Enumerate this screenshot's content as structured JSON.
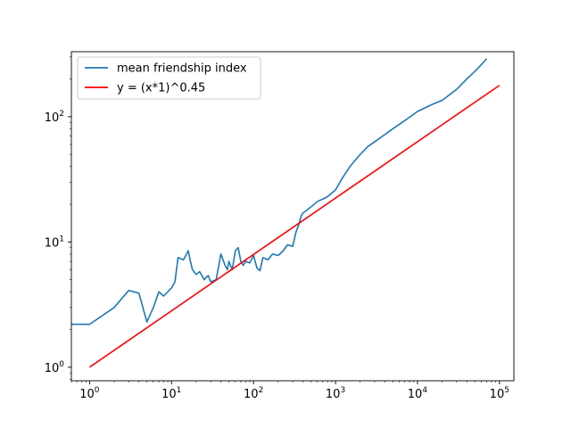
{
  "chart_data": {
    "type": "line",
    "title": "",
    "xlabel": "",
    "ylabel": "",
    "xscale": "log",
    "yscale": "log",
    "xlim": [
      0.6,
      150000
    ],
    "ylim": [
      0.78,
      330
    ],
    "grid": false,
    "legend_position": "top-left",
    "x_ticks": [
      {
        "value": 1,
        "base": "10",
        "exp": "0"
      },
      {
        "value": 10,
        "base": "10",
        "exp": "1"
      },
      {
        "value": 100,
        "base": "10",
        "exp": "2"
      },
      {
        "value": 1000,
        "base": "10",
        "exp": "3"
      },
      {
        "value": 10000,
        "base": "10",
        "exp": "4"
      },
      {
        "value": 100000,
        "base": "10",
        "exp": "5"
      }
    ],
    "y_ticks": [
      {
        "value": 1,
        "base": "10",
        "exp": "0"
      },
      {
        "value": 10,
        "base": "10",
        "exp": "1"
      },
      {
        "value": 100,
        "base": "10",
        "exp": "2"
      }
    ],
    "series": [
      {
        "name": "mean friendship index",
        "color": "#1f77b4",
        "x": [
          0.6,
          1,
          2,
          3,
          4,
          5,
          6,
          7,
          8,
          9,
          10,
          11,
          12,
          14,
          16,
          17,
          18,
          20,
          22,
          25,
          28,
          30,
          35,
          40,
          45,
          48,
          50,
          55,
          60,
          65,
          70,
          75,
          80,
          90,
          100,
          110,
          120,
          130,
          150,
          170,
          200,
          230,
          260,
          300,
          330,
          360,
          380,
          400,
          450,
          500,
          600,
          700,
          800,
          1000,
          1200,
          1500,
          2000,
          2500,
          3000,
          4000,
          5000,
          7000,
          10000,
          15000,
          20000,
          30000,
          40000,
          50000,
          60000,
          70000
        ],
        "values": [
          2.2,
          2.2,
          3.0,
          4.1,
          3.9,
          2.3,
          3.0,
          4.0,
          3.7,
          4.0,
          4.3,
          4.8,
          7.5,
          7.2,
          8.5,
          7.0,
          6.0,
          5.5,
          5.8,
          5.0,
          5.4,
          4.8,
          5.0,
          8.0,
          6.5,
          6.0,
          7.0,
          6.0,
          8.5,
          9.0,
          7.0,
          6.5,
          7.0,
          6.8,
          7.8,
          6.2,
          5.9,
          7.5,
          7.2,
          8.0,
          7.8,
          8.5,
          9.5,
          9.2,
          12.0,
          14.0,
          16.0,
          17.0,
          18.0,
          19.0,
          21.0,
          22.0,
          23.0,
          26.0,
          32.0,
          40.0,
          50.0,
          58.0,
          63.0,
          72.0,
          80.0,
          93.0,
          110.0,
          125.0,
          135.0,
          165.0,
          200.0,
          230.0,
          260.0,
          290.0
        ]
      },
      {
        "name": "y = (x*1)^0.45",
        "color": "#ff0000",
        "formula_exponent": 0.45,
        "x": [
          1,
          100000
        ],
        "values": [
          1.0,
          177.8
        ]
      }
    ]
  }
}
